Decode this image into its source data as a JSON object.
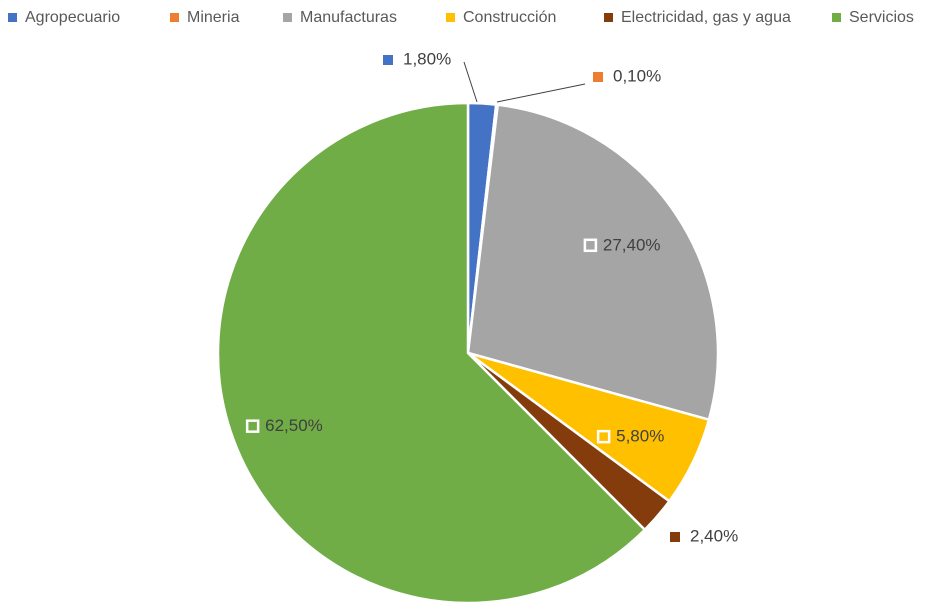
{
  "chart_data": {
    "type": "pie",
    "categories": [
      "Agropecuario",
      "Mineria",
      "Manufacturas",
      "Construcción",
      "Electricidad, gas y agua",
      "Servicios"
    ],
    "values": [
      1.8,
      0.1,
      27.4,
      5.8,
      2.4,
      62.5
    ],
    "value_labels": [
      "1,80%",
      "0,10%",
      "27,40%",
      "5,80%",
      "2,40%",
      "62,50%"
    ],
    "colors": [
      "#4472c4",
      "#ed7d31",
      "#a5a5a5",
      "#ffc000",
      "#843c0c",
      "#70ad47"
    ],
    "legend": "top"
  }
}
